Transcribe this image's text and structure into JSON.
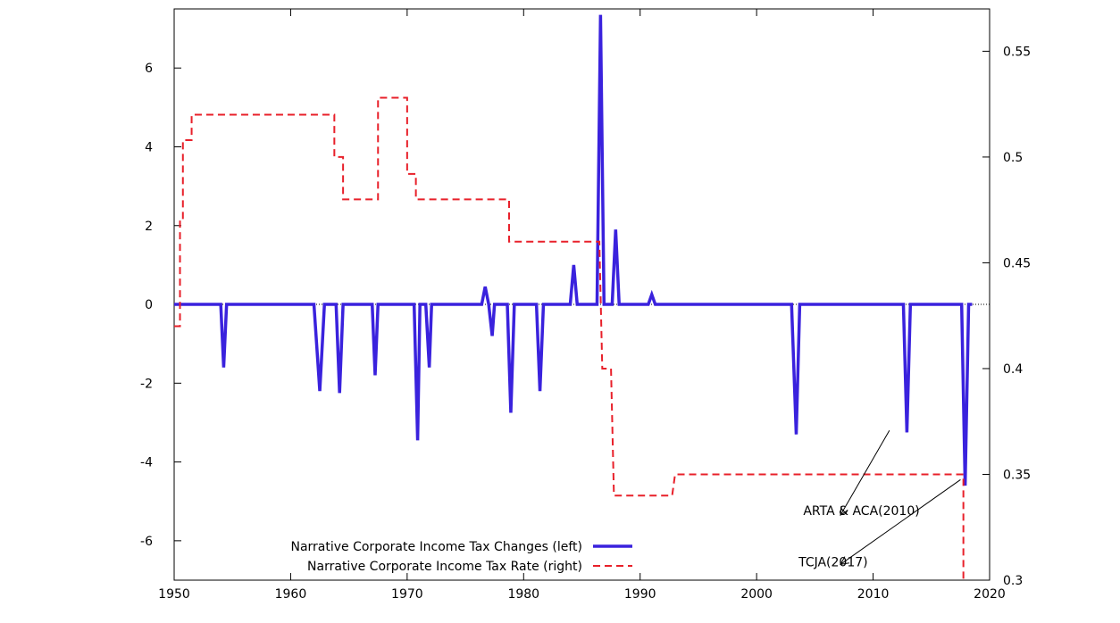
{
  "chart_data": {
    "type": "line",
    "title": "",
    "xlim": [
      1950,
      2020
    ],
    "ylim_left": [
      -7,
      7.5
    ],
    "ylim_right": [
      0.3,
      0.57
    ],
    "x_ticks": [
      1950,
      1960,
      1970,
      1980,
      1990,
      2000,
      2010,
      2020
    ],
    "y_left_ticks": [
      -6,
      -4,
      -2,
      0,
      2,
      4,
      6
    ],
    "y_right_ticks": [
      0.3,
      0.35,
      0.4,
      0.45,
      0.5,
      0.55
    ],
    "grid": false,
    "legend_position": "bottom-left",
    "series": [
      {
        "name": "Narrative Corporate Income Tax Changes (left)",
        "axis": "left",
        "color": "#3a22dd",
        "style": "solid",
        "points": [
          [
            1950.0,
            0
          ],
          [
            1954.0,
            0
          ],
          [
            1954.25,
            -1.6
          ],
          [
            1954.5,
            0
          ],
          [
            1962.0,
            0
          ],
          [
            1962.5,
            -2.2
          ],
          [
            1962.9,
            0
          ],
          [
            1963.9,
            0
          ],
          [
            1964.2,
            -2.25
          ],
          [
            1964.5,
            0
          ],
          [
            1967.0,
            0
          ],
          [
            1967.25,
            -1.8
          ],
          [
            1967.5,
            0
          ],
          [
            1970.6,
            0
          ],
          [
            1970.9,
            -3.45
          ],
          [
            1971.1,
            0
          ],
          [
            1971.6,
            0
          ],
          [
            1971.9,
            -1.6
          ],
          [
            1972.1,
            0
          ],
          [
            1976.4,
            0
          ],
          [
            1976.7,
            0.45
          ],
          [
            1977.0,
            0
          ],
          [
            1977.3,
            -0.8
          ],
          [
            1977.5,
            0
          ],
          [
            1978.6,
            0
          ],
          [
            1978.9,
            -2.75
          ],
          [
            1979.2,
            0
          ],
          [
            1981.1,
            0
          ],
          [
            1981.4,
            -2.2
          ],
          [
            1981.7,
            0
          ],
          [
            1984.0,
            0
          ],
          [
            1984.3,
            1.0
          ],
          [
            1984.6,
            0
          ],
          [
            1986.3,
            0
          ],
          [
            1986.6,
            7.35
          ],
          [
            1986.9,
            0
          ],
          [
            1987.6,
            0
          ],
          [
            1987.9,
            1.9
          ],
          [
            1988.2,
            0
          ],
          [
            1990.7,
            0
          ],
          [
            1991.0,
            0.25
          ],
          [
            1991.3,
            0
          ],
          [
            2003.0,
            0
          ],
          [
            2003.4,
            -3.3
          ],
          [
            2003.7,
            0
          ],
          [
            2012.6,
            0
          ],
          [
            2012.9,
            -3.25
          ],
          [
            2013.2,
            0
          ],
          [
            2017.6,
            0
          ],
          [
            2017.9,
            -4.6
          ],
          [
            2018.2,
            0
          ],
          [
            2018.5,
            0
          ]
        ]
      },
      {
        "name": "Narrative Corporate Income Tax Rate (right)",
        "axis": "right",
        "color": "#e8202a",
        "style": "dashed",
        "points": [
          [
            1950.0,
            0.42
          ],
          [
            1950.5,
            0.42
          ],
          [
            1950.5,
            0.47
          ],
          [
            1950.75,
            0.47
          ],
          [
            1950.75,
            0.508
          ],
          [
            1951.5,
            0.508
          ],
          [
            1951.5,
            0.52
          ],
          [
            1963.75,
            0.52
          ],
          [
            1963.75,
            0.5
          ],
          [
            1964.5,
            0.5
          ],
          [
            1964.5,
            0.48
          ],
          [
            1967.5,
            0.48
          ],
          [
            1967.5,
            0.528
          ],
          [
            1970.0,
            0.528
          ],
          [
            1970.0,
            0.492
          ],
          [
            1970.75,
            0.492
          ],
          [
            1970.75,
            0.48
          ],
          [
            1978.75,
            0.48
          ],
          [
            1978.75,
            0.46
          ],
          [
            1986.5,
            0.46
          ],
          [
            1986.75,
            0.4
          ],
          [
            1987.5,
            0.4
          ],
          [
            1987.75,
            0.34
          ],
          [
            1992.75,
            0.34
          ],
          [
            1993.0,
            0.35
          ],
          [
            2017.75,
            0.35
          ],
          [
            2017.75,
            0.3
          ]
        ]
      }
    ],
    "annotations": [
      {
        "text": "ARTA & ACA(2010)",
        "x": 2004,
        "y": -5.35,
        "arrow_from": [
          2011.4,
          -3.2
        ],
        "arrow_to": [
          2007.2,
          -5.35
        ]
      },
      {
        "text": "TCJA(2017)",
        "x": 2003.6,
        "y": -6.65,
        "arrow_from": [
          2017.5,
          -4.45
        ],
        "arrow_to": [
          2007.2,
          -6.6
        ]
      }
    ]
  }
}
